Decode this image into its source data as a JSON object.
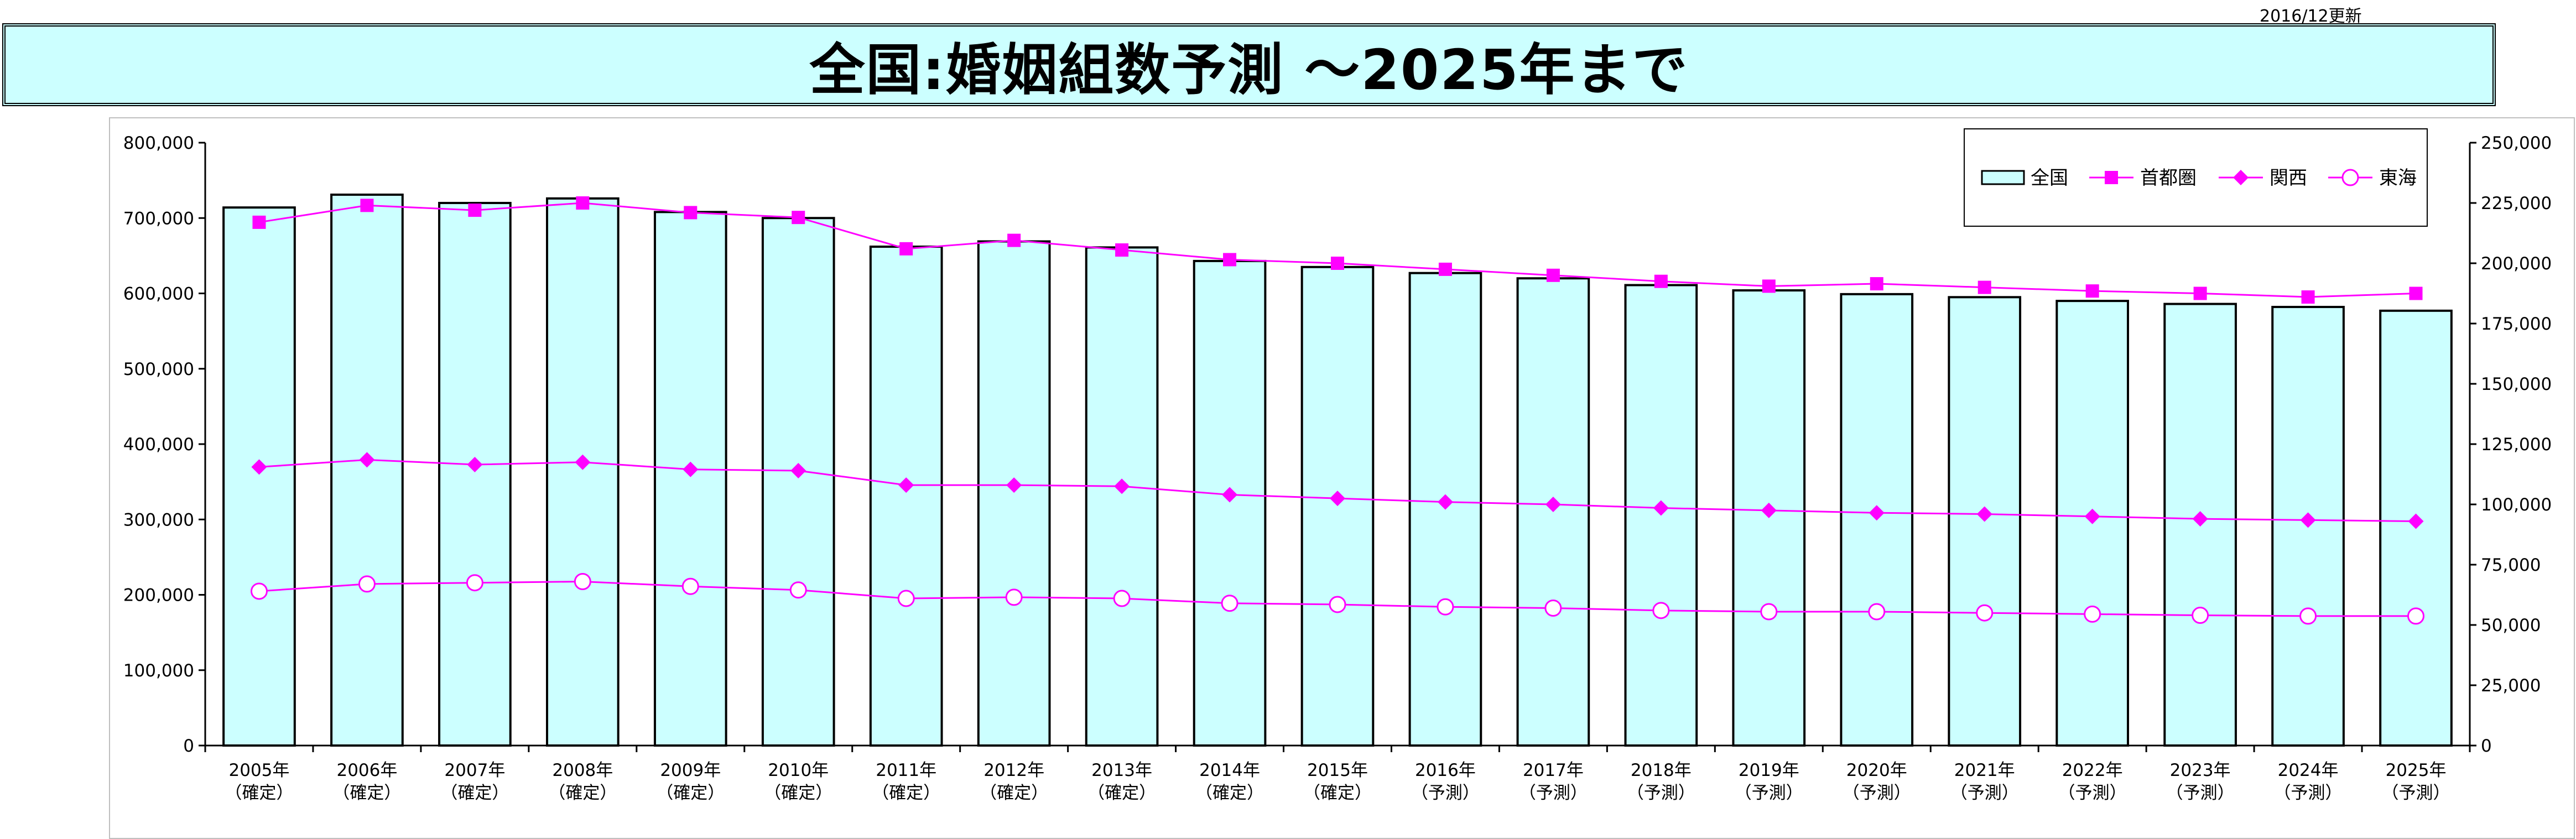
{
  "update_note": "2016/12更新",
  "title": "全国:婚姻組数予測 ～2025年まで",
  "chart_data": {
    "type": "bar",
    "categories": [
      "2005年",
      "2006年",
      "2007年",
      "2008年",
      "2009年",
      "2010年",
      "2011年",
      "2012年",
      "2013年",
      "2014年",
      "2015年",
      "2016年",
      "2017年",
      "2018年",
      "2019年",
      "2020年",
      "2021年",
      "2022年",
      "2023年",
      "2024年",
      "2025年"
    ],
    "category_sublabels": [
      "（確定）",
      "（確定）",
      "（確定）",
      "（確定）",
      "（確定）",
      "（確定）",
      "（確定）",
      "（確定）",
      "（確定）",
      "（確定）",
      "（確定）",
      "（予測）",
      "（予測）",
      "（予測）",
      "（予測）",
      "（予測）",
      "（予測）",
      "（予測）",
      "（予測）",
      "（予測）",
      "（予測）"
    ],
    "left_axis": {
      "min": 0,
      "max": 800000,
      "step": 100000,
      "tick_labels": [
        "0",
        "100,000",
        "200,000",
        "300,000",
        "400,000",
        "500,000",
        "600,000",
        "700,000",
        "800,000"
      ]
    },
    "right_axis": {
      "min": 0,
      "max": 250000,
      "step": 25000,
      "tick_labels": [
        "0",
        "25,000",
        "50,000",
        "75,000",
        "100,000",
        "125,000",
        "150,000",
        "175,000",
        "200,000",
        "225,000",
        "250,000"
      ]
    },
    "legend_position": "top-right",
    "series": [
      {
        "name": "全国",
        "kind": "bar",
        "axis": "left",
        "color": "#ccffff",
        "values": [
          714000,
          731000,
          720000,
          726000,
          708000,
          700000,
          662000,
          669000,
          661000,
          643000,
          635000,
          627000,
          620000,
          611000,
          604000,
          599000,
          595000,
          590000,
          586000,
          582000,
          577000
        ]
      },
      {
        "name": "首都圏",
        "kind": "line",
        "marker": "square",
        "axis": "right",
        "color": "#ff00ff",
        "values": [
          217000,
          224000,
          222000,
          225000,
          221000,
          219000,
          206000,
          209500,
          205500,
          201500,
          200000,
          197500,
          195000,
          192500,
          190500,
          191500,
          190000,
          188500,
          187500,
          186000,
          187500
        ]
      },
      {
        "name": "関西",
        "kind": "line",
        "marker": "diamond",
        "axis": "right",
        "color": "#ff00ff",
        "values": [
          115500,
          118500,
          116500,
          117500,
          114500,
          114000,
          108000,
          108000,
          107500,
          104000,
          102500,
          101000,
          100000,
          98500,
          97500,
          96500,
          96000,
          95000,
          94000,
          93500,
          93000
        ]
      },
      {
        "name": "東海",
        "kind": "line",
        "marker": "circle",
        "axis": "right",
        "color": "#ff00ff",
        "values": [
          64000,
          67000,
          67500,
          68000,
          66000,
          64500,
          61000,
          61500,
          61000,
          59000,
          58500,
          57500,
          57000,
          56000,
          55500,
          55500,
          55000,
          54500,
          54000,
          53700,
          53700
        ]
      }
    ]
  }
}
